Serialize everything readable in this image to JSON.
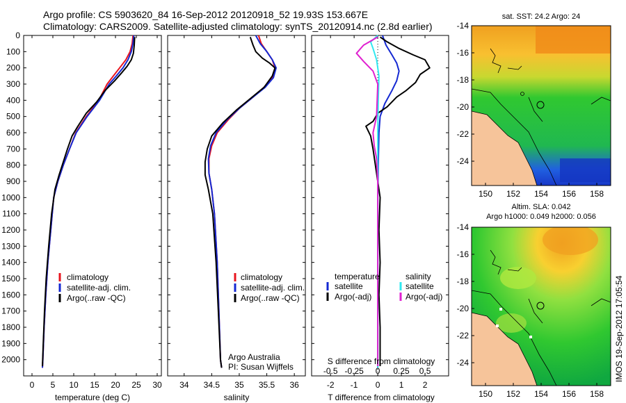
{
  "header": {
    "title_line1": "Argo profile: CS 5903620_84 16-Sep-2012 20120918_52 19.93S 153.667E",
    "title_line2": "Climatology: CARS2009. Satellite-adjusted climatology: synTS_20120914.nc (2.8d earlier)"
  },
  "colors": {
    "climatology": "#e8141e",
    "satellite": "#1428d2",
    "argo": "#000000",
    "salinity_satellite": "#30e8f0",
    "salinity_argo": "#e020d0"
  },
  "chart_data": [
    {
      "type": "line",
      "id": "temperature",
      "xlabel": "temperature (deg C)",
      "ylabel": "",
      "xlim": [
        -2,
        31
      ],
      "ylim": [
        2100,
        0
      ],
      "xticks": [
        0,
        5,
        10,
        15,
        20,
        25,
        30
      ],
      "yticks": [
        0,
        100,
        200,
        300,
        400,
        500,
        600,
        700,
        800,
        900,
        1000,
        1100,
        1200,
        1300,
        1400,
        1500,
        1600,
        1700,
        1800,
        1900,
        2000
      ],
      "legend": [
        "climatology",
        "satellite-adj. clim.",
        "Argo(..raw -QC)"
      ],
      "series": [
        {
          "name": "climatology",
          "color": "#e8141e",
          "points": [
            [
              24.2,
              0
            ],
            [
              24.0,
              50
            ],
            [
              23.5,
              100
            ],
            [
              22.5,
              150
            ],
            [
              21.0,
              200
            ],
            [
              19.5,
              250
            ],
            [
              18.0,
              300
            ],
            [
              16.0,
              400
            ],
            [
              13.0,
              500
            ],
            [
              10.5,
              600
            ],
            [
              9.0,
              700
            ],
            [
              7.5,
              800
            ],
            [
              6.2,
              900
            ],
            [
              5.2,
              1000
            ],
            [
              4.5,
              1200
            ],
            [
              3.8,
              1400
            ],
            [
              3.3,
              1600
            ],
            [
              2.9,
              1800
            ],
            [
              2.6,
              2000
            ],
            [
              2.5,
              2050
            ]
          ]
        },
        {
          "name": "satellite-adj. clim.",
          "color": "#1428d2",
          "points": [
            [
              24.4,
              0
            ],
            [
              24.2,
              50
            ],
            [
              23.8,
              100
            ],
            [
              23.0,
              150
            ],
            [
              21.8,
              200
            ],
            [
              20.2,
              250
            ],
            [
              18.5,
              300
            ],
            [
              16.2,
              400
            ],
            [
              13.2,
              500
            ],
            [
              10.6,
              600
            ],
            [
              9.0,
              700
            ],
            [
              7.5,
              800
            ],
            [
              6.2,
              900
            ],
            [
              5.2,
              1000
            ],
            [
              4.5,
              1200
            ],
            [
              3.8,
              1400
            ],
            [
              3.3,
              1600
            ],
            [
              2.9,
              1800
            ],
            [
              2.6,
              2000
            ],
            [
              2.5,
              2050
            ]
          ]
        },
        {
          "name": "Argo(..raw -QC)",
          "color": "#000000",
          "points": [
            [
              24.6,
              10
            ],
            [
              24.5,
              60
            ],
            [
              24.3,
              110
            ],
            [
              23.8,
              150
            ],
            [
              22.8,
              190
            ],
            [
              21.5,
              230
            ],
            [
              19.8,
              280
            ],
            [
              17.5,
              340
            ],
            [
              15.5,
              410
            ],
            [
              13.0,
              480
            ],
            [
              11.0,
              560
            ],
            [
              9.6,
              620
            ],
            [
              8.5,
              700
            ],
            [
              7.5,
              780
            ],
            [
              6.5,
              860
            ],
            [
              5.5,
              950
            ],
            [
              4.7,
              1100
            ],
            [
              4.0,
              1300
            ],
            [
              3.4,
              1500
            ],
            [
              3.0,
              1700
            ],
            [
              2.7,
              1900
            ],
            [
              2.5,
              2040
            ]
          ]
        }
      ]
    },
    {
      "type": "line",
      "id": "salinity",
      "xlabel": "salinity",
      "xlim": [
        33.7,
        36.2
      ],
      "ylim": [
        2100,
        0
      ],
      "xticks": [
        34,
        34.5,
        35,
        35.5,
        36
      ],
      "legend": [
        "climatology",
        "satellite-adj. clim.",
        "Argo(..raw -QC)"
      ],
      "annotation": [
        "Argo Australia",
        "PI: Susan Wijffels"
      ],
      "series": [
        {
          "name": "climatology",
          "color": "#e8141e",
          "points": [
            [
              35.35,
              0
            ],
            [
              35.4,
              50
            ],
            [
              35.5,
              100
            ],
            [
              35.6,
              150
            ],
            [
              35.65,
              200
            ],
            [
              35.6,
              260
            ],
            [
              35.45,
              320
            ],
            [
              35.25,
              380
            ],
            [
              35.0,
              450
            ],
            [
              34.8,
              520
            ],
            [
              34.6,
              600
            ],
            [
              34.5,
              680
            ],
            [
              34.45,
              760
            ],
            [
              34.45,
              850
            ],
            [
              34.5,
              950
            ],
            [
              34.55,
              1100
            ],
            [
              34.6,
              1400
            ],
            [
              34.63,
              1700
            ],
            [
              34.66,
              2000
            ],
            [
              34.68,
              2050
            ]
          ]
        },
        {
          "name": "satellite-adj. clim.",
          "color": "#1428d2",
          "points": [
            [
              35.3,
              0
            ],
            [
              35.38,
              50
            ],
            [
              35.5,
              100
            ],
            [
              35.6,
              150
            ],
            [
              35.67,
              200
            ],
            [
              35.62,
              260
            ],
            [
              35.47,
              320
            ],
            [
              35.25,
              380
            ],
            [
              35.0,
              450
            ],
            [
              34.78,
              520
            ],
            [
              34.58,
              600
            ],
            [
              34.48,
              680
            ],
            [
              34.44,
              760
            ],
            [
              34.45,
              850
            ],
            [
              34.5,
              950
            ],
            [
              34.55,
              1100
            ],
            [
              34.6,
              1400
            ],
            [
              34.63,
              1700
            ],
            [
              34.66,
              2000
            ],
            [
              34.68,
              2050
            ]
          ]
        },
        {
          "name": "Argo(..raw -QC)",
          "color": "#000000",
          "points": [
            [
              35.2,
              10
            ],
            [
              35.25,
              60
            ],
            [
              35.3,
              100
            ],
            [
              35.42,
              140
            ],
            [
              35.55,
              170
            ],
            [
              35.65,
              200
            ],
            [
              35.6,
              250
            ],
            [
              35.45,
              320
            ],
            [
              35.2,
              390
            ],
            [
              34.95,
              460
            ],
            [
              34.7,
              540
            ],
            [
              34.5,
              620
            ],
            [
              34.42,
              700
            ],
            [
              34.38,
              780
            ],
            [
              34.38,
              860
            ],
            [
              34.44,
              950
            ],
            [
              34.52,
              1100
            ],
            [
              34.58,
              1400
            ],
            [
              34.62,
              1700
            ],
            [
              34.66,
              2000
            ],
            [
              34.68,
              2050
            ]
          ]
        }
      ]
    },
    {
      "type": "line",
      "id": "difference",
      "xlabel": "T difference from climatology",
      "xlabel_top": "S difference from climatology",
      "xlim": [
        -2.8,
        3.0
      ],
      "ylim": [
        2100,
        0
      ],
      "xticks": [
        -2,
        -1,
        0,
        1,
        2
      ],
      "xticks_s_labels": [
        "-0.5",
        "-0.25",
        "0",
        "0.25",
        "0.5"
      ],
      "legend_titles": [
        "temperature",
        "salinity"
      ],
      "legend": [
        "satellite",
        "Argo(-adj)",
        "satellite",
        "Argo(-adj)"
      ],
      "series": [
        {
          "name": "temperature satellite",
          "color": "#1428d2",
          "points": [
            [
              0.2,
              0
            ],
            [
              0.35,
              60
            ],
            [
              0.6,
              120
            ],
            [
              0.8,
              170
            ],
            [
              0.9,
              220
            ],
            [
              0.8,
              280
            ],
            [
              0.6,
              340
            ],
            [
              0.3,
              420
            ],
            [
              0.1,
              500
            ],
            [
              0.05,
              600
            ],
            [
              0.02,
              800
            ],
            [
              0.0,
              1000
            ],
            [
              0.0,
              2050
            ]
          ]
        },
        {
          "name": "temperature Argo(-adj)",
          "color": "#000000",
          "points": [
            [
              0.1,
              10
            ],
            [
              0.4,
              40
            ],
            [
              0.9,
              80
            ],
            [
              1.5,
              120
            ],
            [
              2.0,
              150
            ],
            [
              2.2,
              200
            ],
            [
              1.8,
              240
            ],
            [
              1.6,
              290
            ],
            [
              1.2,
              340
            ],
            [
              0.8,
              380
            ],
            [
              0.4,
              440
            ],
            [
              0.0,
              480
            ],
            [
              -0.2,
              530
            ],
            [
              -0.5,
              560
            ],
            [
              -0.3,
              620
            ],
            [
              -0.2,
              700
            ],
            [
              -0.1,
              800
            ],
            [
              0.0,
              900
            ],
            [
              0.1,
              1000
            ],
            [
              0.05,
              1200
            ],
            [
              0.1,
              1400
            ],
            [
              0.05,
              1600
            ],
            [
              0.1,
              1800
            ],
            [
              0.1,
              2040
            ]
          ]
        },
        {
          "name": "salinity satellite",
          "color": "#30e8f0",
          "points": [
            [
              0.0,
              0
            ],
            [
              -0.3,
              40
            ],
            [
              -0.2,
              80
            ],
            [
              -0.05,
              150
            ],
            [
              0.05,
              250
            ],
            [
              0.02,
              400
            ],
            [
              0.0,
              600
            ],
            [
              0.0,
              2050
            ]
          ]
        },
        {
          "name": "salinity Argo(-adj)",
          "color": "#e020d0",
          "points": [
            [
              0.0,
              10
            ],
            [
              -0.6,
              60
            ],
            [
              -0.9,
              110
            ],
            [
              -0.6,
              160
            ],
            [
              -0.2,
              220
            ],
            [
              0.0,
              300
            ],
            [
              -0.05,
              500
            ],
            [
              -0.2,
              600
            ],
            [
              -0.15,
              680
            ],
            [
              -0.05,
              760
            ],
            [
              0.0,
              900
            ],
            [
              0.0,
              2040
            ]
          ]
        }
      ]
    }
  ],
  "maps": [
    {
      "id": "sst-map",
      "title": "sat. SST: 24.2  Argo: 24",
      "title_line2": "",
      "lon_ticks": [
        "150",
        "152",
        "154",
        "156",
        "158"
      ],
      "lat_ticks": [
        "-14",
        "-16",
        "-18",
        "-20",
        "-22",
        "-24"
      ]
    },
    {
      "id": "sla-map",
      "title": "Altim. SLA: 0.042",
      "title_line2": "Argo h1000: 0.049 h2000: 0.056",
      "lon_ticks": [
        "150",
        "152",
        "154",
        "156",
        "158"
      ],
      "lat_ticks": [
        "-14",
        "-16",
        "-18",
        "-20",
        "-22",
        "-24"
      ]
    }
  ],
  "footer": {
    "imos_stamp": "IMOS 19-Sep-2012 17:05:54"
  }
}
